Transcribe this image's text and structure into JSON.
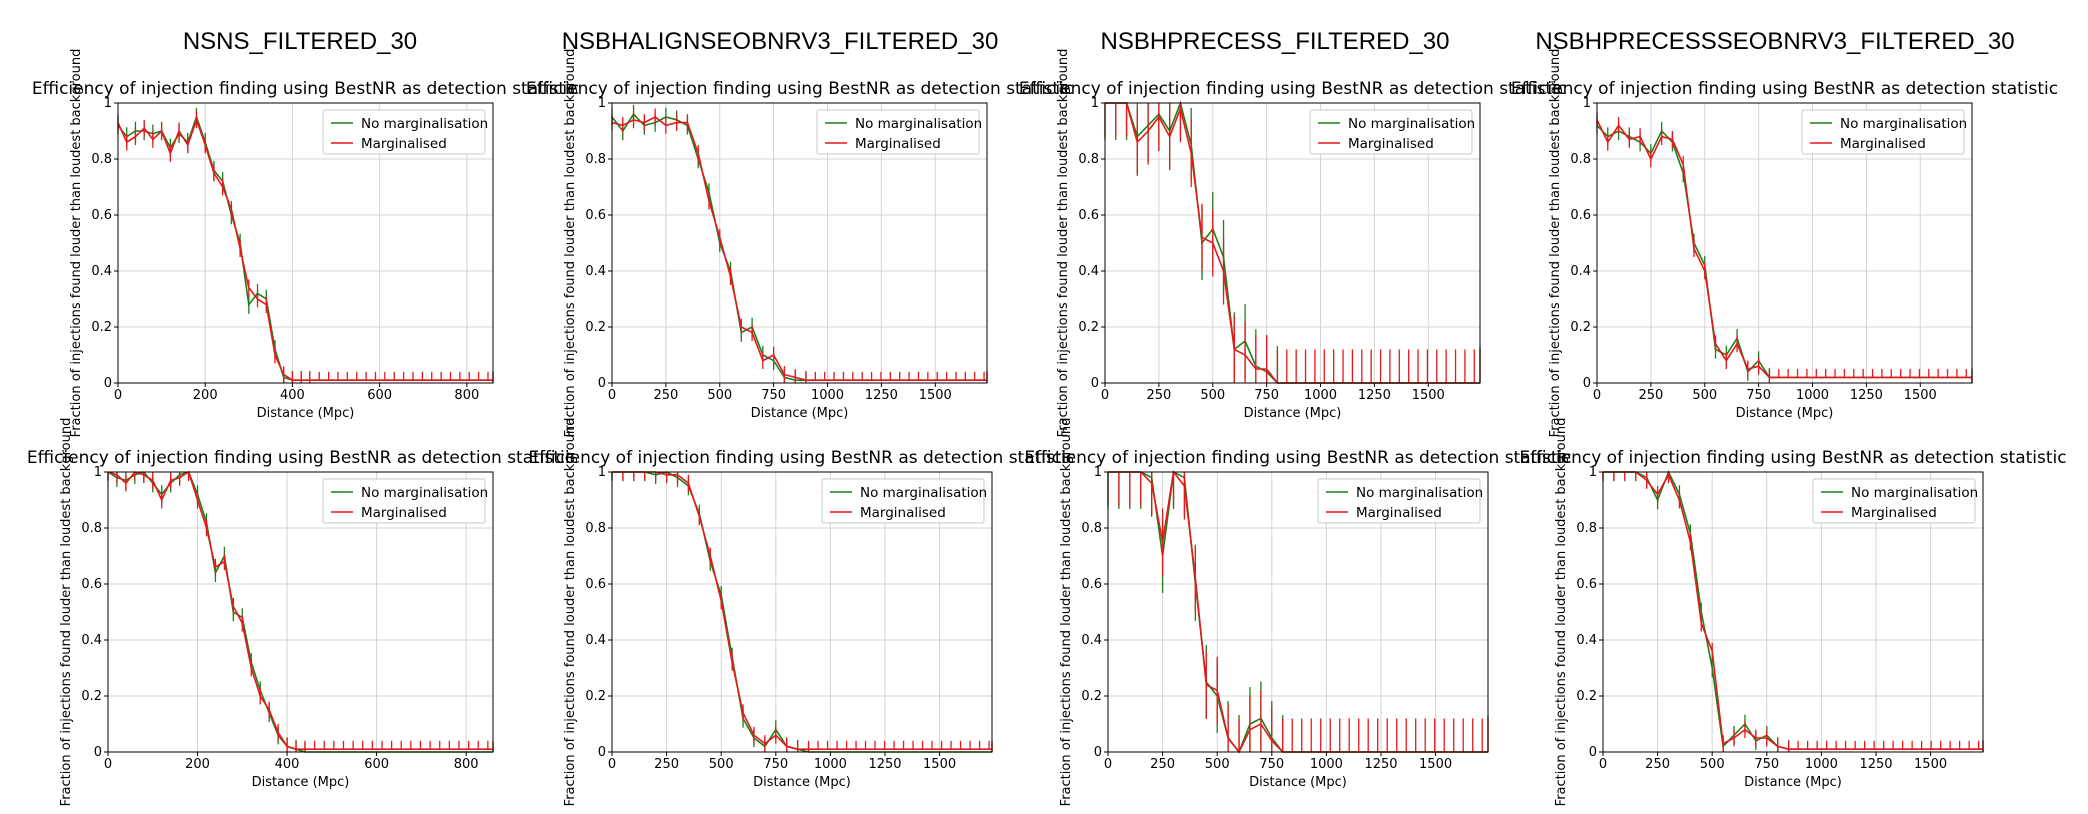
{
  "column_titles": [
    "NSNS_FILTERED_30",
    "NSBHALIGNSEOBNRV3_FILTERED_30",
    "NSBHPRECESS_FILTERED_30",
    "NSBHPRECESSSEOBNRV3_FILTERED_30"
  ],
  "colors": {
    "no_marginalisation": "#1a801a",
    "marginalised": "#e8171b",
    "grid": "#d4d4d4"
  },
  "chart_data": [
    {
      "type": "line",
      "title": "Efficiency of injection finding using BestNR as detection statistic",
      "xlabel": "Distance (Mpc)",
      "ylabel": "Fraction of injections found louder than loudest background",
      "xlim": [
        0,
        860
      ],
      "ylim": [
        0,
        1.0
      ],
      "xticks": [
        0,
        200,
        400,
        600,
        800
      ],
      "yticks": [
        0,
        0.2,
        0.4,
        0.6,
        0.8,
        1.0
      ],
      "legend": "top-right",
      "grid": true,
      "series": [
        {
          "name": "No marginalisation",
          "x": [
            0,
            20,
            40,
            60,
            80,
            100,
            120,
            140,
            160,
            180,
            200,
            220,
            240,
            260,
            280,
            300,
            320,
            340,
            360,
            380,
            400,
            420,
            440,
            860
          ],
          "y": [
            0.92,
            0.88,
            0.9,
            0.9,
            0.89,
            0.9,
            0.84,
            0.89,
            0.86,
            0.95,
            0.86,
            0.76,
            0.72,
            0.6,
            0.5,
            0.28,
            0.32,
            0.3,
            0.12,
            0.02,
            0.01,
            0.01,
            0.01,
            0.01
          ]
        },
        {
          "name": "Marginalised",
          "x": [
            0,
            20,
            40,
            60,
            80,
            100,
            120,
            140,
            160,
            180,
            200,
            220,
            240,
            260,
            280,
            300,
            320,
            340,
            360,
            380,
            400,
            420,
            440,
            860
          ],
          "y": [
            0.93,
            0.86,
            0.88,
            0.91,
            0.87,
            0.9,
            0.82,
            0.9,
            0.85,
            0.94,
            0.85,
            0.75,
            0.7,
            0.62,
            0.48,
            0.34,
            0.3,
            0.28,
            0.1,
            0.03,
            0.01,
            0.01,
            0.01,
            0.01
          ],
          "yerr": 0.03
        }
      ]
    },
    {
      "type": "line",
      "title": "Efficiency of injection finding using BestNR as detection statistic",
      "xlabel": "Distance (Mpc)",
      "ylabel": "Fraction of injections found louder than loudest background",
      "xlim": [
        0,
        1740
      ],
      "ylim": [
        0,
        1.0
      ],
      "xticks": [
        0,
        250,
        500,
        750,
        1000,
        1250,
        1500
      ],
      "yticks": [
        0,
        0.2,
        0.4,
        0.6,
        0.8,
        1.0
      ],
      "legend": "top-right",
      "grid": true,
      "series": [
        {
          "name": "No marginalisation",
          "x": [
            0,
            50,
            100,
            150,
            200,
            250,
            300,
            350,
            400,
            450,
            500,
            550,
            600,
            650,
            700,
            750,
            800,
            850,
            900,
            1740
          ],
          "y": [
            0.95,
            0.9,
            0.96,
            0.92,
            0.93,
            0.95,
            0.94,
            0.92,
            0.8,
            0.68,
            0.5,
            0.4,
            0.18,
            0.2,
            0.1,
            0.08,
            0.02,
            0.01,
            0.01,
            0.01
          ]
        },
        {
          "name": "Marginalised",
          "x": [
            0,
            50,
            100,
            150,
            200,
            250,
            300,
            350,
            400,
            450,
            500,
            550,
            600,
            650,
            700,
            750,
            800,
            850,
            900,
            1740
          ],
          "y": [
            0.93,
            0.92,
            0.94,
            0.93,
            0.95,
            0.92,
            0.93,
            0.93,
            0.82,
            0.65,
            0.52,
            0.38,
            0.2,
            0.18,
            0.08,
            0.1,
            0.03,
            0.02,
            0.01,
            0.01
          ],
          "yerr": 0.03
        }
      ]
    },
    {
      "type": "line",
      "title": "Efficiency of injection finding using BestNR as detection statistic",
      "xlabel": "Distance (Mpc)",
      "ylabel": "Fraction of injections found louder than loudest background",
      "xlim": [
        0,
        1740
      ],
      "ylim": [
        0,
        1.0
      ],
      "xticks": [
        0,
        250,
        500,
        750,
        1000,
        1250,
        1500
      ],
      "yticks": [
        0,
        0.2,
        0.4,
        0.6,
        0.8,
        1.0
      ],
      "legend": "top-right",
      "grid": true,
      "series": [
        {
          "name": "No marginalisation",
          "x": [
            0,
            50,
            100,
            150,
            200,
            250,
            300,
            350,
            400,
            450,
            500,
            550,
            600,
            650,
            700,
            750,
            800,
            1740
          ],
          "y": [
            1.0,
            1.0,
            1.0,
            0.88,
            0.92,
            0.96,
            0.9,
            1.0,
            0.85,
            0.5,
            0.55,
            0.45,
            0.12,
            0.15,
            0.06,
            0.04,
            0.0,
            0.0
          ]
        },
        {
          "name": "Marginalised",
          "x": [
            0,
            50,
            100,
            150,
            200,
            250,
            300,
            350,
            400,
            450,
            500,
            550,
            600,
            650,
            700,
            750,
            800,
            1740
          ],
          "y": [
            1.0,
            1.0,
            1.0,
            0.86,
            0.9,
            0.95,
            0.88,
            0.98,
            0.82,
            0.52,
            0.5,
            0.4,
            0.12,
            0.1,
            0.05,
            0.05,
            0.0,
            0.0
          ],
          "yerr": 0.12
        }
      ]
    },
    {
      "type": "line",
      "title": "Efficiency of injection finding using BestNR as detection statistic",
      "xlabel": "Distance (Mpc)",
      "ylabel": "Fraction of injections found louder than loudest background",
      "xlim": [
        0,
        1740
      ],
      "ylim": [
        0,
        1.0
      ],
      "xticks": [
        0,
        250,
        500,
        750,
        1000,
        1250,
        1500
      ],
      "yticks": [
        0,
        0.2,
        0.4,
        0.6,
        0.8,
        1.0
      ],
      "legend": "top-right",
      "grid": true,
      "series": [
        {
          "name": "No marginalisation",
          "x": [
            0,
            50,
            100,
            150,
            200,
            250,
            300,
            350,
            400,
            450,
            500,
            550,
            600,
            650,
            700,
            750,
            800,
            1740
          ],
          "y": [
            0.92,
            0.88,
            0.9,
            0.88,
            0.86,
            0.82,
            0.9,
            0.86,
            0.75,
            0.5,
            0.42,
            0.12,
            0.1,
            0.16,
            0.04,
            0.08,
            0.02,
            0.02
          ]
        },
        {
          "name": "Marginalised",
          "x": [
            0,
            50,
            100,
            150,
            200,
            250,
            300,
            350,
            400,
            450,
            500,
            550,
            600,
            650,
            700,
            750,
            800,
            1740
          ],
          "y": [
            0.94,
            0.86,
            0.92,
            0.87,
            0.88,
            0.8,
            0.88,
            0.87,
            0.78,
            0.48,
            0.4,
            0.14,
            0.08,
            0.14,
            0.05,
            0.06,
            0.02,
            0.02
          ],
          "yerr": 0.03
        }
      ]
    },
    {
      "type": "line",
      "title": "Efficiency of injection finding using BestNR as detection statistic",
      "xlabel": "Distance (Mpc)",
      "ylabel": "Fraction of injections found louder than loudest background",
      "xlim": [
        0,
        860
      ],
      "ylim": [
        0,
        1.0
      ],
      "xticks": [
        0,
        200,
        400,
        600,
        800
      ],
      "yticks": [
        0,
        0.2,
        0.4,
        0.6,
        0.8,
        1.0
      ],
      "legend": "top-right",
      "grid": true,
      "series": [
        {
          "name": "No marginalisation",
          "x": [
            0,
            20,
            40,
            60,
            80,
            100,
            120,
            140,
            160,
            180,
            200,
            220,
            240,
            260,
            280,
            300,
            320,
            340,
            360,
            380,
            400,
            420,
            440,
            860
          ],
          "y": [
            1.0,
            0.98,
            0.97,
            0.99,
            1.0,
            0.96,
            0.92,
            0.96,
            0.99,
            1.0,
            0.92,
            0.82,
            0.64,
            0.7,
            0.5,
            0.48,
            0.32,
            0.22,
            0.14,
            0.06,
            0.02,
            0.01,
            0.0,
            0.0
          ]
        },
        {
          "name": "Marginalised",
          "x": [
            0,
            20,
            40,
            60,
            80,
            100,
            120,
            140,
            160,
            180,
            200,
            220,
            240,
            260,
            280,
            300,
            320,
            340,
            360,
            380,
            400,
            420,
            440,
            860
          ],
          "y": [
            1.0,
            0.99,
            0.96,
            1.0,
            0.99,
            0.97,
            0.9,
            0.97,
            0.98,
            1.0,
            0.9,
            0.8,
            0.66,
            0.68,
            0.52,
            0.46,
            0.3,
            0.2,
            0.15,
            0.07,
            0.02,
            0.01,
            0.01,
            0.01
          ],
          "yerr": 0.03
        }
      ]
    },
    {
      "type": "line",
      "title": "Efficiency of injection finding using BestNR as detection statistic",
      "xlabel": "Distance (Mpc)",
      "ylabel": "Fraction of injections found louder than loudest background",
      "xlim": [
        0,
        1740
      ],
      "ylim": [
        0,
        1.0
      ],
      "xticks": [
        0,
        250,
        500,
        750,
        1000,
        1250,
        1500
      ],
      "yticks": [
        0,
        0.2,
        0.4,
        0.6,
        0.8,
        1.0
      ],
      "legend": "top-right",
      "grid": true,
      "series": [
        {
          "name": "No marginalisation",
          "x": [
            0,
            50,
            100,
            150,
            200,
            250,
            300,
            350,
            400,
            450,
            500,
            550,
            600,
            650,
            700,
            750,
            800,
            850,
            900,
            1740
          ],
          "y": [
            1.0,
            1.0,
            1.0,
            1.0,
            0.99,
            1.0,
            0.98,
            0.95,
            0.85,
            0.68,
            0.56,
            0.34,
            0.12,
            0.05,
            0.02,
            0.08,
            0.02,
            0.01,
            0.0,
            0.0
          ]
        },
        {
          "name": "Marginalised",
          "x": [
            0,
            50,
            100,
            150,
            200,
            250,
            300,
            350,
            400,
            450,
            500,
            550,
            600,
            650,
            700,
            750,
            800,
            850,
            900,
            1740
          ],
          "y": [
            1.0,
            1.0,
            1.0,
            1.0,
            1.0,
            0.99,
            0.99,
            0.96,
            0.84,
            0.7,
            0.54,
            0.32,
            0.14,
            0.06,
            0.03,
            0.06,
            0.02,
            0.01,
            0.01,
            0.01
          ],
          "yerr": 0.03
        }
      ]
    },
    {
      "type": "line",
      "title": "Efficiency of injection finding using BestNR as detection statistic",
      "xlabel": "Distance (Mpc)",
      "ylabel": "Fraction of injections found louder than loudest background",
      "xlim": [
        0,
        1740
      ],
      "ylim": [
        0,
        1.0
      ],
      "xticks": [
        0,
        250,
        500,
        750,
        1000,
        1250,
        1500
      ],
      "yticks": [
        0,
        0.2,
        0.4,
        0.6,
        0.8,
        1.0
      ],
      "legend": "top-right",
      "grid": true,
      "series": [
        {
          "name": "No marginalisation",
          "x": [
            0,
            50,
            100,
            150,
            200,
            250,
            300,
            350,
            400,
            450,
            500,
            550,
            600,
            650,
            700,
            750,
            800,
            1740
          ],
          "y": [
            1.0,
            1.0,
            1.0,
            1.0,
            0.98,
            0.7,
            1.0,
            0.98,
            0.6,
            0.25,
            0.2,
            0.05,
            0.0,
            0.1,
            0.12,
            0.05,
            0.0,
            0.0
          ]
        },
        {
          "name": "Marginalised",
          "x": [
            0,
            50,
            100,
            150,
            200,
            250,
            300,
            350,
            400,
            450,
            500,
            550,
            600,
            650,
            700,
            750,
            800,
            1740
          ],
          "y": [
            1.0,
            1.0,
            1.0,
            1.0,
            0.96,
            0.75,
            1.0,
            0.95,
            0.62,
            0.24,
            0.22,
            0.05,
            0.0,
            0.08,
            0.1,
            0.04,
            0.0,
            0.0
          ],
          "yerr": 0.12
        }
      ]
    },
    {
      "type": "line",
      "title": "Efficiency of injection finding using BestNR as detection statistic",
      "xlabel": "Distance (Mpc)",
      "ylabel": "Fraction of injections found louder than loudest background",
      "xlim": [
        0,
        1740
      ],
      "ylim": [
        0,
        1.0
      ],
      "xticks": [
        0,
        250,
        500,
        750,
        1000,
        1250,
        1500
      ],
      "yticks": [
        0,
        0.2,
        0.4,
        0.6,
        0.8,
        1.0
      ],
      "legend": "top-right",
      "grid": true,
      "series": [
        {
          "name": "No marginalisation",
          "x": [
            0,
            50,
            100,
            150,
            200,
            250,
            300,
            350,
            400,
            450,
            500,
            550,
            600,
            650,
            700,
            750,
            800,
            850,
            1740
          ],
          "y": [
            1.0,
            1.0,
            1.0,
            1.0,
            0.98,
            0.9,
            1.0,
            0.92,
            0.78,
            0.5,
            0.3,
            0.02,
            0.06,
            0.1,
            0.04,
            0.06,
            0.02,
            0.01,
            0.01
          ]
        },
        {
          "name": "Marginalised",
          "x": [
            0,
            50,
            100,
            150,
            200,
            250,
            300,
            350,
            400,
            450,
            500,
            550,
            600,
            650,
            700,
            750,
            800,
            850,
            1740
          ],
          "y": [
            1.0,
            1.0,
            1.0,
            1.0,
            0.97,
            0.92,
            0.99,
            0.9,
            0.75,
            0.46,
            0.36,
            0.03,
            0.05,
            0.08,
            0.05,
            0.05,
            0.02,
            0.01,
            0.01
          ],
          "yerr": 0.03
        }
      ]
    }
  ]
}
